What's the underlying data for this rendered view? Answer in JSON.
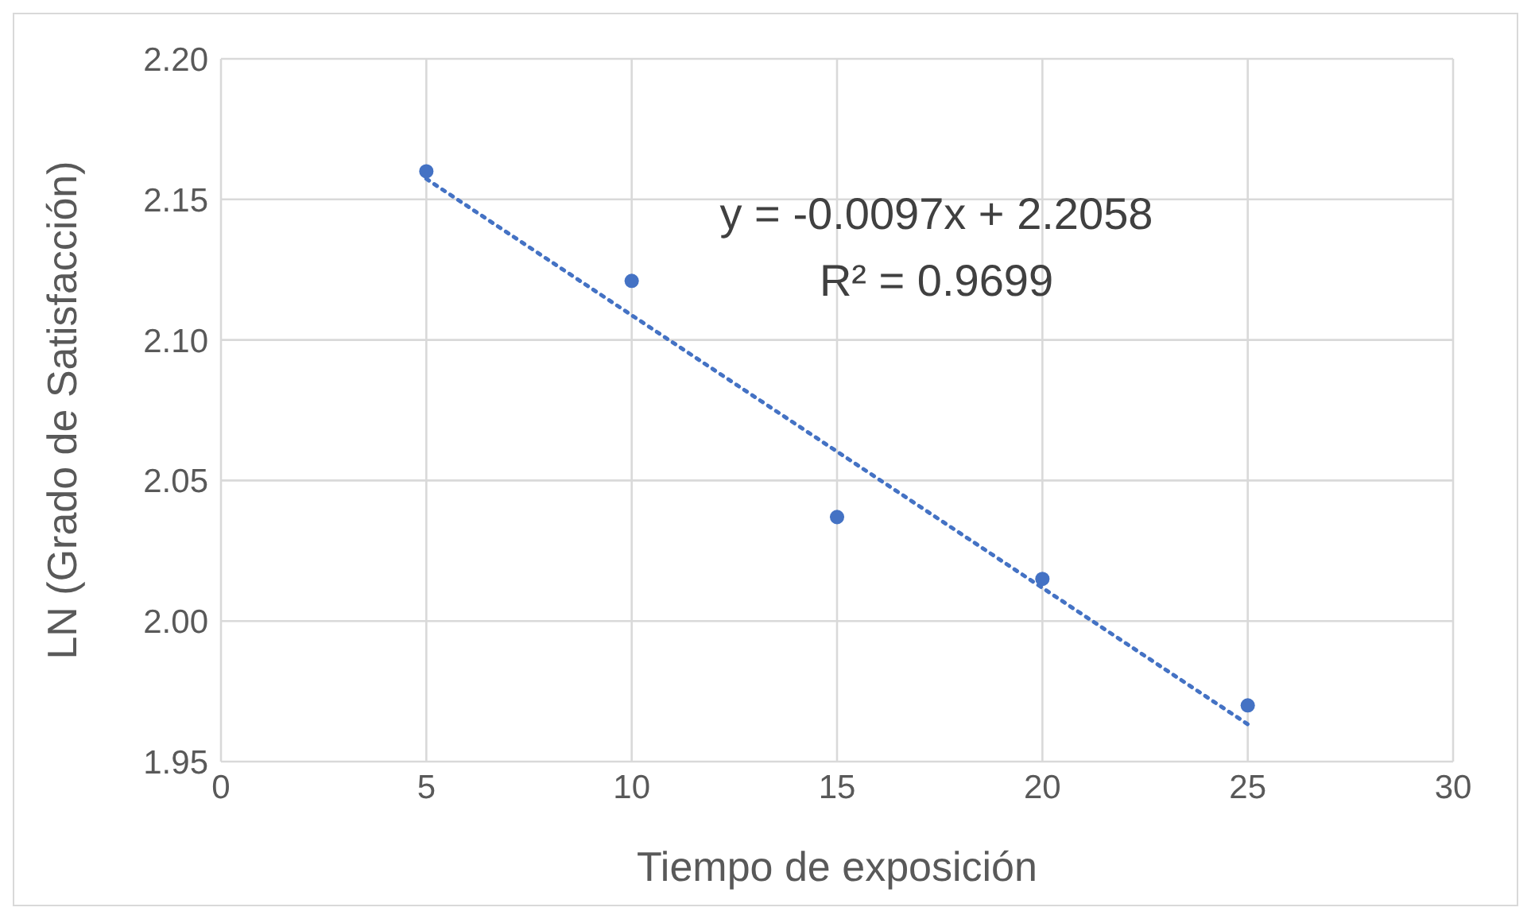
{
  "chart_data": {
    "type": "scatter",
    "xlabel": "Tiempo de exposición",
    "ylabel": "LN (Grado de Satisfacción)",
    "series": [
      {
        "color": "#4472c4",
        "marker": "circle",
        "x": [
          5,
          10,
          15,
          20,
          25
        ],
        "values": [
          2.16,
          2.121,
          2.037,
          2.015,
          1.97
        ]
      },
      {
        "type": "line",
        "color": "#4472c4",
        "marker": "none",
        "line_style": "dotted",
        "x": [
          5,
          25
        ],
        "values": [
          2.1573,
          1.9633
        ]
      }
    ],
    "annotations": [
      "y = -0.0097x + 2.2058",
      "R² = 0.9699"
    ],
    "xlim": [
      0,
      30
    ],
    "xticks": [
      0,
      5,
      10,
      15,
      20,
      25,
      30
    ],
    "ylim": [
      1.95,
      2.2
    ],
    "yticks": [
      1.95,
      {
        "value": 2,
        "label": "2.00"
      },
      2.05,
      {
        "value": 2.1,
        "label": "2.10"
      },
      2.15,
      {
        "value": 2.2,
        "label": "2.20"
      }
    ],
    "grid": true,
    "legend": false
  }
}
